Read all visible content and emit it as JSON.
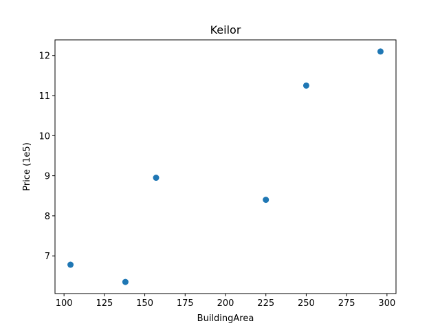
{
  "chart_data": {
    "type": "scatter",
    "title": "Keilor",
    "xlabel": "BuildingArea",
    "ylabel": "Price (1e5)",
    "xlim": [
      94.4,
      305.6
    ],
    "ylim": [
      6.06,
      12.39
    ],
    "x_ticks": [
      100,
      125,
      150,
      175,
      200,
      225,
      250,
      275,
      300
    ],
    "y_ticks": [
      7,
      8,
      9,
      10,
      11,
      12
    ],
    "grid": false,
    "series": [
      {
        "color": "#1f77b4",
        "points": [
          {
            "x": 104,
            "y": 6.78
          },
          {
            "x": 138,
            "y": 6.35
          },
          {
            "x": 157,
            "y": 8.95
          },
          {
            "x": 225,
            "y": 8.4
          },
          {
            "x": 250,
            "y": 11.25
          },
          {
            "x": 296,
            "y": 12.1
          }
        ]
      }
    ]
  }
}
